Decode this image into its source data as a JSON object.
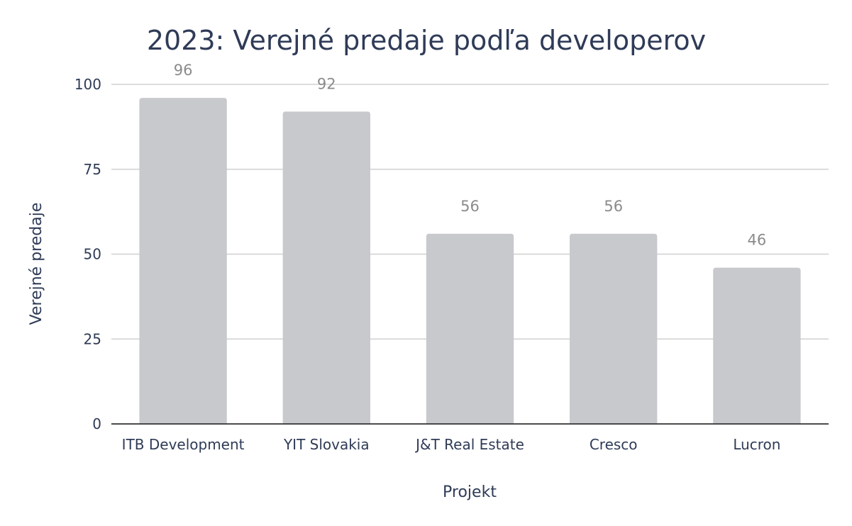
{
  "chart_data": {
    "type": "bar",
    "title": "2023: Verejné predaje podľa developerov",
    "xlabel": "Projekt",
    "ylabel": "Verejné predaje",
    "categories": [
      "ITB Development",
      "YIT Slovakia",
      "J&T Real Estate",
      "Cresco",
      "Lucron"
    ],
    "values": [
      96,
      92,
      56,
      56,
      46
    ],
    "ylim": [
      0,
      100
    ],
    "yticks": [
      0,
      25,
      50,
      75,
      100
    ],
    "grid": true,
    "colors": {
      "bar": "#c8c9cd",
      "title": "#2f3b57",
      "axis": "#333333",
      "grid": "#d0d0d0",
      "data_label": "#8b8b8b"
    }
  }
}
